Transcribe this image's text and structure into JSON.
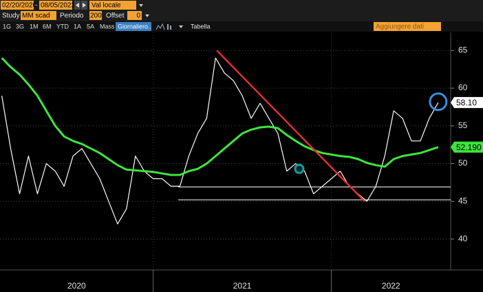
{
  "toolbar": {
    "start_date": "02/20/2020",
    "end_date": "08/05/2022",
    "currency": "Val locale",
    "study_label": "Study",
    "study": "MM scad",
    "period_label": "Periodo",
    "period": 200,
    "offset_label": "Offset",
    "offset": 0,
    "ranges": [
      "1G",
      "3G",
      "1M",
      "6M",
      "YTD",
      "1A",
      "5A",
      "Mass"
    ],
    "frequency": "Giornaliero..",
    "table": "Tabella",
    "add_data": "Aggiungere dati"
  },
  "chart_data": {
    "type": "line",
    "x": [
      2020.15,
      2020.2,
      2020.25,
      2020.3,
      2020.35,
      2020.4,
      2020.45,
      2020.5,
      2020.55,
      2020.6,
      2020.65,
      2020.7,
      2020.75,
      2020.8,
      2020.85,
      2020.9,
      2020.95,
      2021.0,
      2021.05,
      2021.1,
      2021.15,
      2021.2,
      2021.25,
      2021.3,
      2021.35,
      2021.4,
      2021.45,
      2021.5,
      2021.55,
      2021.6,
      2021.65,
      2021.7,
      2021.75,
      2021.8,
      2021.85,
      2021.9,
      2021.95,
      2022.0,
      2022.05,
      2022.1,
      2022.15,
      2022.2,
      2022.25,
      2022.3,
      2022.35,
      2022.4,
      2022.45,
      2022.5,
      2022.55,
      2022.6
    ],
    "series": [
      {
        "color": "#ffffff",
        "values": [
          59,
          52,
          46,
          51,
          46,
          50,
          49,
          47,
          51,
          52,
          50,
          48,
          45,
          42,
          44,
          51,
          49,
          48,
          48,
          47,
          47,
          51,
          54,
          56,
          64,
          62,
          61,
          59,
          56,
          58,
          56,
          54,
          49,
          50,
          49,
          46,
          47,
          48,
          49,
          47,
          46,
          45,
          47,
          51,
          57,
          56,
          53,
          53,
          56,
          58.1
        ],
        "value_labels": [
          null,
          null,
          null,
          null,
          null,
          null,
          null,
          null,
          null,
          null,
          null,
          null,
          null,
          null,
          null,
          null,
          null,
          null,
          null,
          null,
          null,
          null,
          null,
          null,
          null,
          null,
          null,
          null,
          null,
          null,
          null,
          null,
          null,
          null,
          null,
          null,
          null,
          null,
          null,
          null,
          null,
          null,
          null,
          null,
          null,
          null,
          null,
          null,
          null,
          "58.10"
        ]
      },
      {
        "color": "#3ee53e",
        "values": [
          64,
          62.8,
          61.8,
          60.5,
          59,
          57,
          55,
          53.6,
          53,
          52.6,
          52,
          51.4,
          50.6,
          49.8,
          49.2,
          49.1,
          49,
          48.9,
          48.7,
          48.5,
          48.5,
          49,
          49.3,
          50,
          51,
          52,
          53,
          54,
          54.5,
          54.8,
          54.9,
          54.7,
          53.8,
          53,
          52.3,
          51.8,
          51.4,
          51.2,
          51,
          50.9,
          50.6,
          50.1,
          49.8,
          49.6,
          50.6,
          51,
          51.2,
          51.4,
          51.8,
          52.19
        ],
        "value_labels": [
          null,
          null,
          null,
          null,
          null,
          null,
          null,
          null,
          null,
          null,
          null,
          null,
          null,
          null,
          null,
          null,
          null,
          null,
          null,
          null,
          null,
          null,
          null,
          null,
          null,
          null,
          null,
          null,
          null,
          null,
          null,
          null,
          null,
          null,
          null,
          null,
          null,
          null,
          null,
          null,
          null,
          null,
          null,
          null,
          null,
          null,
          null,
          null,
          null,
          "52.190"
        ]
      }
    ],
    "xlim": [
      2020.14,
      2022.67
    ],
    "xticks": [
      2020,
      2021,
      2022
    ],
    "ylim": [
      35.9,
      67.4
    ],
    "yticks": [
      40,
      45,
      50,
      55,
      60,
      65
    ],
    "grid": true,
    "trendline": {
      "x": [
        2021.357,
        2022.187
      ],
      "y": [
        65,
        45
      ],
      "color": "#e0302f"
    },
    "hlines": {
      "x": 2021.14,
      "values": [
        46.9,
        45.2
      ],
      "color": "#ffffff"
    },
    "circles": [
      {
        "x": 2022.6,
        "y": 58.2,
        "color": "#3a8fe0"
      },
      {
        "x": 2021.82,
        "y": 49.3,
        "color": "#1b9a9a"
      }
    ]
  }
}
